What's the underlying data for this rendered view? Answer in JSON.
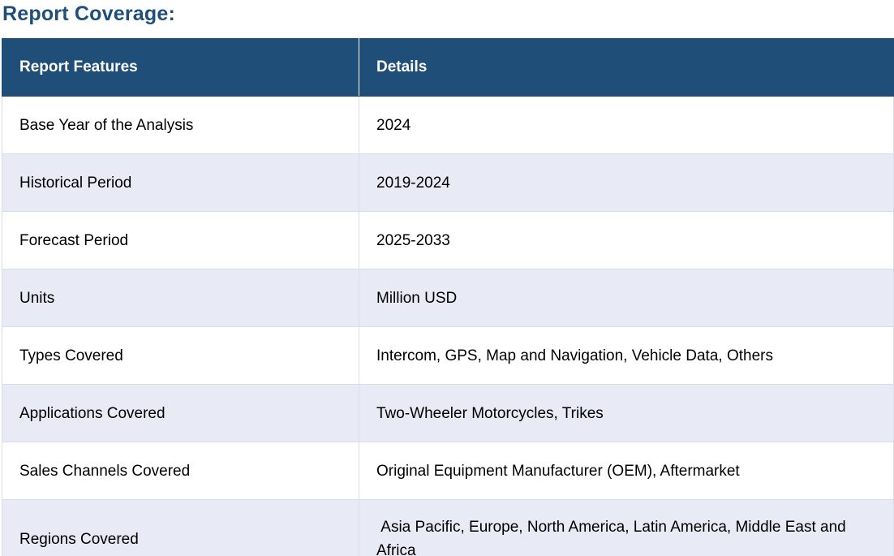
{
  "section": {
    "title": "Report Coverage:"
  },
  "table": {
    "headers": [
      "Report Features",
      "Details"
    ],
    "rows": [
      {
        "feature": "Base Year of the Analysis",
        "detail": "2024"
      },
      {
        "feature": "Historical Period",
        "detail": "2019-2024"
      },
      {
        "feature": "Forecast Period",
        "detail": "2025-2033"
      },
      {
        "feature": "Units",
        "detail": "Million USD"
      },
      {
        "feature": "Types Covered",
        "detail": "Intercom, GPS, Map and Navigation, Vehicle Data, Others"
      },
      {
        "feature": "Applications Covered",
        "detail": "Two-Wheeler Motorcycles, Trikes"
      },
      {
        "feature": "Sales Channels Covered",
        "detail": "Original Equipment Manufacturer (OEM), Aftermarket"
      },
      {
        "feature": "Regions Covered",
        "detail": " Asia Pacific, Europe, North America, Latin America, Middle East and Africa"
      }
    ]
  },
  "colors": {
    "header_bg": "#1f4e79",
    "header_text": "#ffffff",
    "title_text": "#1f4e79",
    "alt_row_bg": "#e8eaf5"
  }
}
